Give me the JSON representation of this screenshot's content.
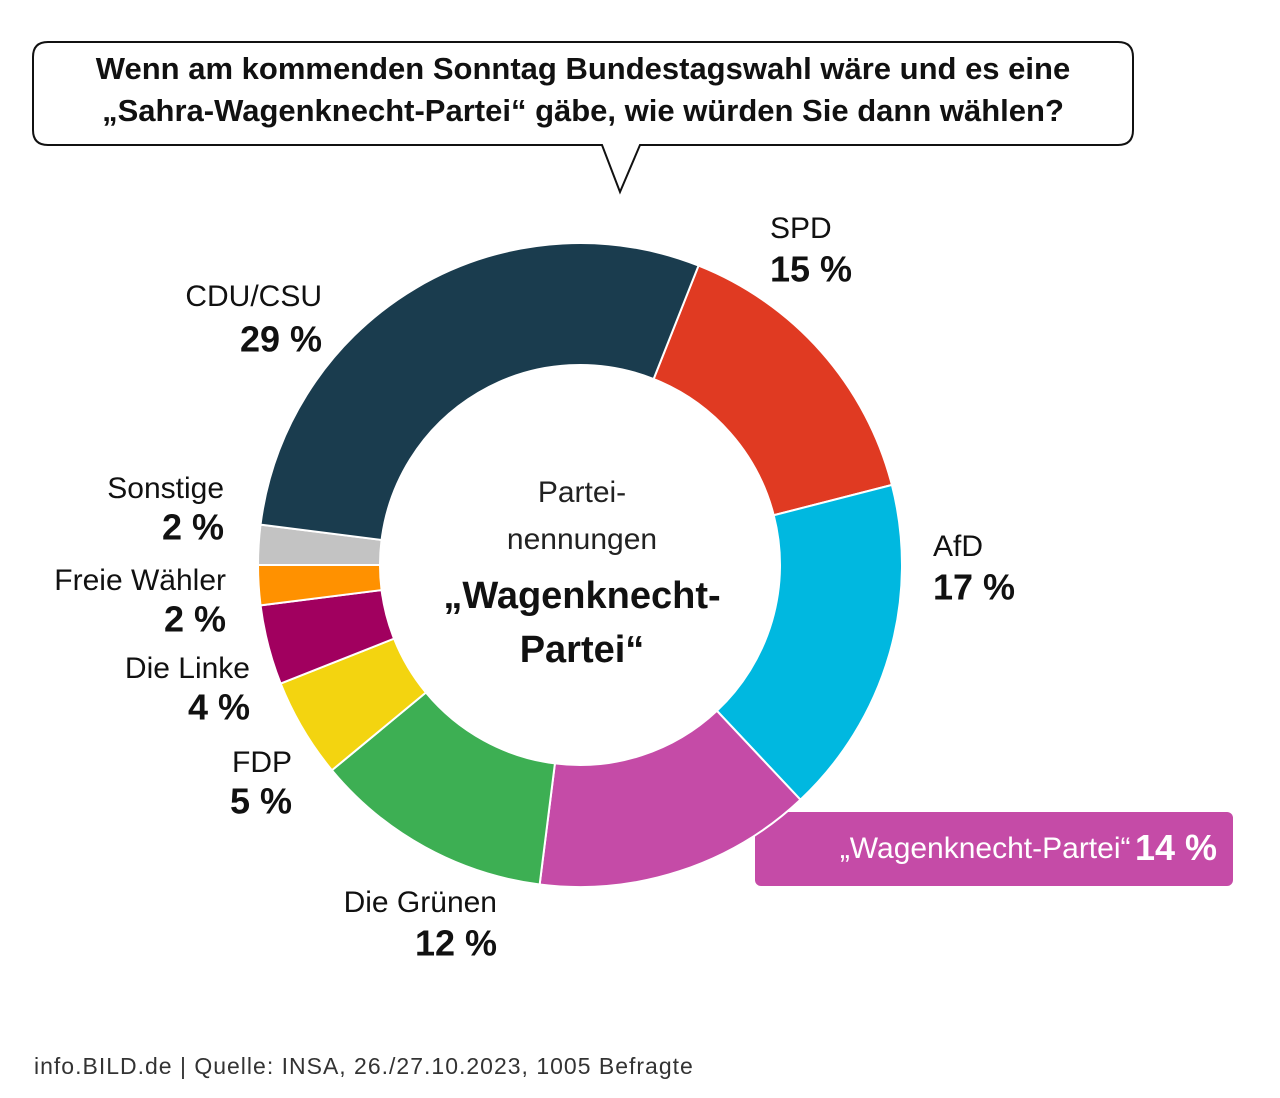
{
  "chart_data": {
    "type": "donut",
    "title": [
      "Wenn am kommenden Sonntag Bundestagswahl wäre und es eine",
      "„Sahra-Wagenknecht-Partei“ gäbe, wie würden Sie dann wählen?"
    ],
    "center_text": [
      "Partei-",
      "nennungen",
      "„Wagenknecht-",
      "Partei“"
    ],
    "categories": [
      "SPD",
      "AfD",
      "„Wagenknecht-Partei“",
      "Die Grünen",
      "FDP",
      "Die Linke",
      "Freie Wähler",
      "Sonstige",
      "CDU/CSU"
    ],
    "values": [
      15,
      17,
      14,
      12,
      5,
      4,
      2,
      2,
      29
    ],
    "value_labels": [
      "15 %",
      "17 %",
      "14 %",
      "12 %",
      "5 %",
      "4 %",
      "2 %",
      "2 %",
      "29 %"
    ],
    "colors": [
      "#e03a22",
      "#00b8e0",
      "#c54ba7",
      "#3daf53",
      "#f3d410",
      "#a1005f",
      "#ff9100",
      "#c3c3c3",
      "#1a3c4e"
    ],
    "source": "info.BILD.de | Quelle: INSA, 26./27.10.2023, 1005 Befragte"
  }
}
